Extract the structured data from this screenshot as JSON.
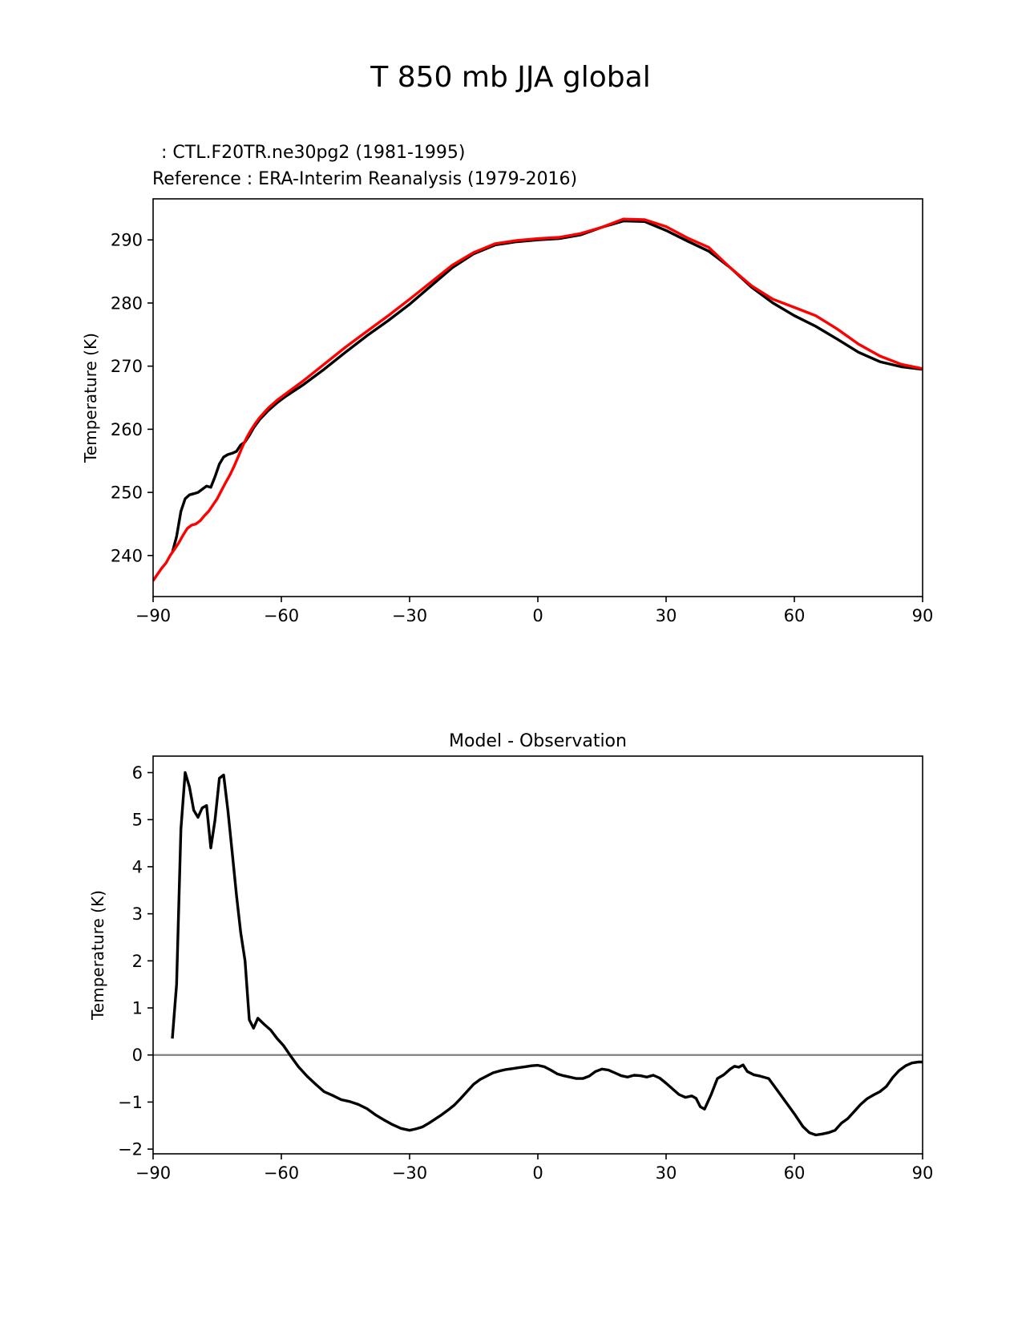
{
  "figure": {
    "title": "T 850 mb JJA global",
    "test_label": " : CTL.F20TR.ne30pg2 (1981-1995)",
    "ref_label": "Reference : ERA-Interim Reanalysis (1979-2016)"
  },
  "colors": {
    "test": "#000000",
    "reference": "#ff0000",
    "zero_line": "#808080"
  },
  "chart_data": [
    {
      "type": "line",
      "title": "",
      "xlabel": "",
      "ylabel": "Temperature (K)",
      "xlim": [
        -90,
        90
      ],
      "ylim": [
        233.5,
        296.5
      ],
      "xticks": [
        -90,
        -60,
        -30,
        0,
        30,
        60,
        90
      ],
      "xtick_labels": [
        "−90",
        "−60",
        "−30",
        "0",
        "30",
        "60",
        "90"
      ],
      "yticks": [
        240,
        250,
        260,
        270,
        280,
        290
      ],
      "ytick_labels": [
        "240",
        "250",
        "260",
        "270",
        "280",
        "290"
      ],
      "grid": false,
      "series": [
        {
          "name": "CTL.F20TR.ne30pg2 (1981-1995)",
          "color": "#000000",
          "x": [
            -85.5,
            -84.5,
            -83.5,
            -82.5,
            -81.5,
            -80.5,
            -79.5,
            -78.5,
            -77.5,
            -76.5,
            -75.5,
            -74.5,
            -73.5,
            -72.5,
            -71.5,
            -70.5,
            -69.5,
            -68.5,
            -67.5,
            -66.5,
            -65,
            -63,
            -61,
            -59,
            -57,
            -55,
            -50,
            -45,
            -40,
            -35,
            -30,
            -25,
            -20,
            -15,
            -10,
            -5,
            0,
            5,
            10,
            15,
            20,
            25,
            30,
            35,
            40,
            45,
            50,
            55,
            60,
            65,
            70,
            75,
            80,
            85,
            90
          ],
          "y": [
            240.5,
            243,
            247,
            249,
            249.6,
            249.8,
            250,
            250.5,
            251,
            250.8,
            252.5,
            254.5,
            255.6,
            256,
            256.2,
            256.5,
            257.5,
            258,
            259,
            260.2,
            261.6,
            263,
            264.2,
            265.2,
            266.1,
            267,
            269.5,
            272.2,
            274.8,
            277.2,
            279.8,
            282.7,
            285.6,
            287.8,
            289.2,
            289.7,
            290,
            290.2,
            290.8,
            292,
            293,
            292.9,
            291.5,
            289.8,
            288.2,
            285.6,
            282.5,
            280,
            278,
            276.3,
            274.3,
            272.2,
            270.7,
            269.9,
            269.5
          ]
        },
        {
          "name": "ERA-Interim Reanalysis (1979-2016)",
          "color": "#ff0000",
          "x": [
            -90,
            -89,
            -88,
            -87,
            -86,
            -85,
            -84,
            -83,
            -82,
            -81,
            -80,
            -79,
            -78,
            -77,
            -76,
            -75,
            -74,
            -73,
            -72,
            -71,
            -70,
            -69,
            -68,
            -67,
            -66,
            -65,
            -63,
            -61,
            -59,
            -57,
            -55,
            -50,
            -45,
            -40,
            -35,
            -30,
            -25,
            -20,
            -15,
            -10,
            -5,
            0,
            5,
            10,
            15,
            20,
            25,
            30,
            35,
            40,
            45,
            50,
            55,
            60,
            65,
            70,
            75,
            80,
            85,
            90
          ],
          "y": [
            236,
            237,
            238,
            238.8,
            240,
            241,
            242,
            243.2,
            244.3,
            244.8,
            245,
            245.5,
            246.3,
            247,
            248,
            249,
            250.3,
            251.6,
            252.8,
            254.2,
            255.8,
            257.4,
            258.8,
            260,
            261,
            261.9,
            263.4,
            264.6,
            265.6,
            266.6,
            267.6,
            270.3,
            273,
            275.5,
            278,
            280.6,
            283.3,
            286,
            288,
            289.4,
            289.9,
            290.2,
            290.4,
            291,
            292,
            293.3,
            293.2,
            292.1,
            290.3,
            288.8,
            285.6,
            282.7,
            280.6,
            279.3,
            278,
            275.9,
            273.5,
            271.6,
            270.3,
            269.6
          ]
        }
      ]
    },
    {
      "type": "line",
      "title": "Model - Observation",
      "xlabel": "",
      "ylabel": "Temperature (K)",
      "xlim": [
        -90,
        90
      ],
      "ylim": [
        -2.1,
        6.35
      ],
      "xticks": [
        -90,
        -60,
        -30,
        0,
        30,
        60,
        90
      ],
      "xtick_labels": [
        "−90",
        "−60",
        "−30",
        "0",
        "30",
        "60",
        "90"
      ],
      "yticks": [
        -2,
        -1,
        0,
        1,
        2,
        3,
        4,
        5,
        6
      ],
      "ytick_labels": [
        "−2",
        "−1",
        "0",
        "1",
        "2",
        "3",
        "4",
        "5",
        "6"
      ],
      "grid": false,
      "zero_line": 0,
      "series": [
        {
          "name": "Model - Observation",
          "color": "#000000",
          "x": [
            -85.5,
            -84.5,
            -83.5,
            -82.5,
            -81.5,
            -80.5,
            -79.5,
            -78.5,
            -77.5,
            -76.5,
            -75.5,
            -74.5,
            -73.5,
            -72.5,
            -71.5,
            -70.5,
            -69.5,
            -68.5,
            -67.5,
            -66.5,
            -65.5,
            -64,
            -62.5,
            -61,
            -59.5,
            -58,
            -56,
            -54,
            -52,
            -50,
            -48,
            -46,
            -44,
            -42,
            -40,
            -38,
            -36,
            -34,
            -32,
            -30,
            -28.5,
            -27,
            -25.5,
            -24,
            -22.5,
            -21,
            -19.5,
            -18,
            -16.5,
            -15,
            -13.5,
            -12,
            -10.5,
            -9,
            -7.5,
            -6,
            -4.5,
            -3,
            -1.5,
            0,
            1.5,
            3,
            4.5,
            6,
            7.5,
            9,
            10.5,
            12,
            13.5,
            15,
            16.5,
            18,
            19.5,
            21,
            22.5,
            24,
            25.5,
            27,
            28.5,
            30,
            31.5,
            33,
            34.5,
            36,
            37,
            38,
            39,
            40.5,
            42,
            43.5,
            45,
            46,
            47,
            48,
            49,
            50.5,
            52,
            54,
            56,
            58,
            60,
            62,
            63.5,
            65,
            66.5,
            68,
            69.5,
            71,
            72.5,
            74,
            75.5,
            77,
            78.5,
            80,
            81.5,
            83,
            84.5,
            86,
            87.5,
            89,
            90
          ],
          "y": [
            0.35,
            1.5,
            4.8,
            6.0,
            5.7,
            5.2,
            5.05,
            5.25,
            5.3,
            4.4,
            5.0,
            5.88,
            5.95,
            5.2,
            4.3,
            3.4,
            2.6,
            2.0,
            0.75,
            0.57,
            0.78,
            0.65,
            0.53,
            0.35,
            0.2,
            0.0,
            -0.25,
            -0.45,
            -0.62,
            -0.78,
            -0.86,
            -0.95,
            -0.99,
            -1.05,
            -1.14,
            -1.27,
            -1.38,
            -1.48,
            -1.56,
            -1.6,
            -1.57,
            -1.53,
            -1.45,
            -1.36,
            -1.27,
            -1.17,
            -1.06,
            -0.92,
            -0.77,
            -0.62,
            -0.52,
            -0.45,
            -0.38,
            -0.34,
            -0.31,
            -0.29,
            -0.27,
            -0.25,
            -0.23,
            -0.22,
            -0.25,
            -0.32,
            -0.4,
            -0.44,
            -0.47,
            -0.5,
            -0.5,
            -0.45,
            -0.35,
            -0.3,
            -0.32,
            -0.38,
            -0.44,
            -0.47,
            -0.43,
            -0.44,
            -0.47,
            -0.43,
            -0.49,
            -0.6,
            -0.72,
            -0.84,
            -0.9,
            -0.87,
            -0.92,
            -1.1,
            -1.15,
            -0.85,
            -0.5,
            -0.42,
            -0.3,
            -0.24,
            -0.26,
            -0.21,
            -0.35,
            -0.42,
            -0.45,
            -0.5,
            -0.75,
            -1.0,
            -1.25,
            -1.52,
            -1.65,
            -1.7,
            -1.68,
            -1.65,
            -1.6,
            -1.45,
            -1.35,
            -1.2,
            -1.05,
            -0.93,
            -0.85,
            -0.78,
            -0.67,
            -0.48,
            -0.33,
            -0.23,
            -0.17,
            -0.15,
            -0.15
          ]
        }
      ]
    }
  ]
}
